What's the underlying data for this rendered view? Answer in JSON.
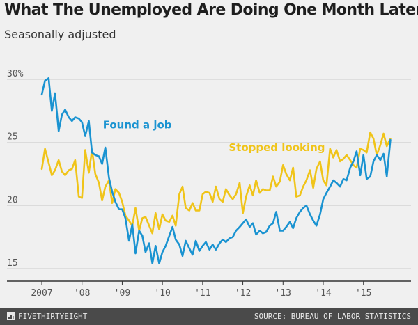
{
  "title": "What The Unemployed Are Doing One Month Later",
  "subtitle": "Seasonally adjusted",
  "footer": {
    "brand": "FIVETHIRTYEIGHT",
    "brand_icon": "fivethirtyeight-logo-icon",
    "source": "SOURCE: BUREAU OF LABOR STATISTICS"
  },
  "chart_data": {
    "type": "line",
    "xlim": [
      2007.0,
      2015.75
    ],
    "ylim": [
      14,
      31
    ],
    "grid": true,
    "x_ticks": [
      2007,
      2008,
      2009,
      2010,
      2011,
      2012,
      2013,
      2014,
      2015
    ],
    "x_tick_labels": [
      "2007",
      "'08",
      "'09",
      "'10",
      "'11",
      "'12",
      "'13",
      "'14",
      "'15"
    ],
    "y_ticks": [
      15,
      20,
      25,
      30
    ],
    "y_tick_labels": [
      "15",
      "20",
      "25",
      "30%"
    ],
    "series": [
      {
        "name": "Found a job",
        "color": "#1a93d1",
        "label_position": "upper-left, near 2008.3",
        "x": [
          2007.0,
          2007.08,
          2007.17,
          2007.25,
          2007.33,
          2007.42,
          2007.5,
          2007.58,
          2007.67,
          2007.75,
          2007.83,
          2007.92,
          2008.0,
          2008.08,
          2008.17,
          2008.25,
          2008.33,
          2008.42,
          2008.5,
          2008.58,
          2008.67,
          2008.75,
          2008.83,
          2008.92,
          2009.0,
          2009.08,
          2009.17,
          2009.25,
          2009.33,
          2009.42,
          2009.5,
          2009.58,
          2009.67,
          2009.75,
          2009.83,
          2009.92,
          2010.0,
          2010.08,
          2010.17,
          2010.25,
          2010.33,
          2010.42,
          2010.5,
          2010.58,
          2010.67,
          2010.75,
          2010.83,
          2010.92,
          2011.0,
          2011.08,
          2011.17,
          2011.25,
          2011.33,
          2011.42,
          2011.5,
          2011.58,
          2011.67,
          2011.75,
          2011.83,
          2011.92,
          2012.0,
          2012.08,
          2012.17,
          2012.25,
          2012.33,
          2012.42,
          2012.5,
          2012.58,
          2012.67,
          2012.75,
          2012.83,
          2012.92,
          2013.0,
          2013.08,
          2013.17,
          2013.25,
          2013.33,
          2013.42,
          2013.5,
          2013.58,
          2013.67,
          2013.75,
          2013.83,
          2013.92,
          2014.0,
          2014.08,
          2014.17,
          2014.25,
          2014.33,
          2014.42,
          2014.5,
          2014.58,
          2014.67,
          2014.75,
          2014.83,
          2014.92,
          2015.0,
          2015.08,
          2015.17,
          2015.25,
          2015.33,
          2015.42,
          2015.5,
          2015.58,
          2015.67
        ],
        "values": [
          28.8,
          29.9,
          30.1,
          27.5,
          28.9,
          25.9,
          27.2,
          27.6,
          27.0,
          26.7,
          27.0,
          26.9,
          26.6,
          25.5,
          26.7,
          24.2,
          24.0,
          23.9,
          23.3,
          24.6,
          22.2,
          21.1,
          20.3,
          19.7,
          19.7,
          19.0,
          17.2,
          18.5,
          16.2,
          18.0,
          17.6,
          16.3,
          17.0,
          15.4,
          16.8,
          15.4,
          16.3,
          16.8,
          17.6,
          18.3,
          17.3,
          16.9,
          16.0,
          17.2,
          16.6,
          16.1,
          17.2,
          16.4,
          16.8,
          17.1,
          16.5,
          16.9,
          16.5,
          17.0,
          17.3,
          17.1,
          17.4,
          17.5,
          18.0,
          18.3,
          18.6,
          18.9,
          18.3,
          18.6,
          17.7,
          18.0,
          17.8,
          17.9,
          18.4,
          18.6,
          19.5,
          18.0,
          18.0,
          18.3,
          18.7,
          18.2,
          19.0,
          19.5,
          19.8,
          20.0,
          19.3,
          18.8,
          18.4,
          19.3,
          20.5,
          21.0,
          21.5,
          22.0,
          21.8,
          21.5,
          22.1,
          22.0,
          23.0,
          23.5,
          24.3,
          22.4,
          24.0,
          22.1,
          22.3,
          23.5,
          24.0,
          23.6,
          24.1,
          22.3,
          25.2
        ]
      },
      {
        "name": "Stopped looking",
        "color": "#f0c419",
        "label_position": "upper-middle, near 2011.8",
        "x": [
          2007.0,
          2007.08,
          2007.17,
          2007.25,
          2007.33,
          2007.42,
          2007.5,
          2007.58,
          2007.67,
          2007.75,
          2007.83,
          2007.92,
          2008.0,
          2008.08,
          2008.17,
          2008.25,
          2008.33,
          2008.42,
          2008.5,
          2008.58,
          2008.67,
          2008.75,
          2008.83,
          2008.92,
          2009.0,
          2009.08,
          2009.17,
          2009.25,
          2009.33,
          2009.42,
          2009.5,
          2009.58,
          2009.67,
          2009.75,
          2009.83,
          2009.92,
          2010.0,
          2010.08,
          2010.17,
          2010.25,
          2010.33,
          2010.42,
          2010.5,
          2010.58,
          2010.67,
          2010.75,
          2010.83,
          2010.92,
          2011.0,
          2011.08,
          2011.17,
          2011.25,
          2011.33,
          2011.42,
          2011.5,
          2011.58,
          2011.67,
          2011.75,
          2011.83,
          2011.92,
          2012.0,
          2012.08,
          2012.17,
          2012.25,
          2012.33,
          2012.42,
          2012.5,
          2012.58,
          2012.67,
          2012.75,
          2012.83,
          2012.92,
          2013.0,
          2013.08,
          2013.17,
          2013.25,
          2013.33,
          2013.42,
          2013.5,
          2013.58,
          2013.67,
          2013.75,
          2013.83,
          2013.92,
          2014.0,
          2014.08,
          2014.17,
          2014.25,
          2014.33,
          2014.42,
          2014.5,
          2014.58,
          2014.67,
          2014.75,
          2014.83,
          2014.92,
          2015.0,
          2015.08,
          2015.17,
          2015.25,
          2015.33,
          2015.42,
          2015.5,
          2015.58,
          2015.67
        ],
        "values": [
          22.9,
          24.5,
          23.4,
          22.4,
          22.8,
          23.6,
          22.7,
          22.4,
          22.8,
          22.9,
          23.6,
          20.7,
          20.6,
          24.4,
          22.6,
          24.4,
          22.5,
          21.8,
          20.4,
          21.5,
          22.0,
          20.2,
          21.3,
          21.0,
          20.3,
          19.2,
          18.8,
          18.4,
          19.8,
          18.0,
          19.0,
          19.1,
          18.4,
          17.8,
          19.4,
          18.1,
          19.3,
          18.8,
          18.7,
          19.2,
          18.4,
          20.9,
          21.5,
          19.8,
          19.6,
          20.2,
          19.6,
          19.6,
          20.9,
          21.1,
          21.0,
          20.3,
          21.5,
          20.5,
          20.3,
          21.3,
          20.8,
          20.5,
          20.9,
          21.8,
          19.4,
          20.7,
          21.6,
          20.8,
          22.0,
          21.0,
          21.3,
          21.2,
          21.2,
          22.3,
          21.5,
          21.9,
          23.2,
          22.5,
          22.0,
          23.0,
          20.7,
          20.8,
          21.5,
          22.0,
          22.8,
          21.4,
          22.9,
          23.5,
          22.0,
          21.6,
          24.5,
          23.8,
          24.4,
          23.5,
          23.7,
          24.0,
          23.6,
          23.2,
          23.0,
          24.5,
          24.4,
          24.2,
          25.8,
          25.3,
          24.0,
          24.8,
          25.7,
          24.7,
          25.3
        ]
      }
    ]
  }
}
